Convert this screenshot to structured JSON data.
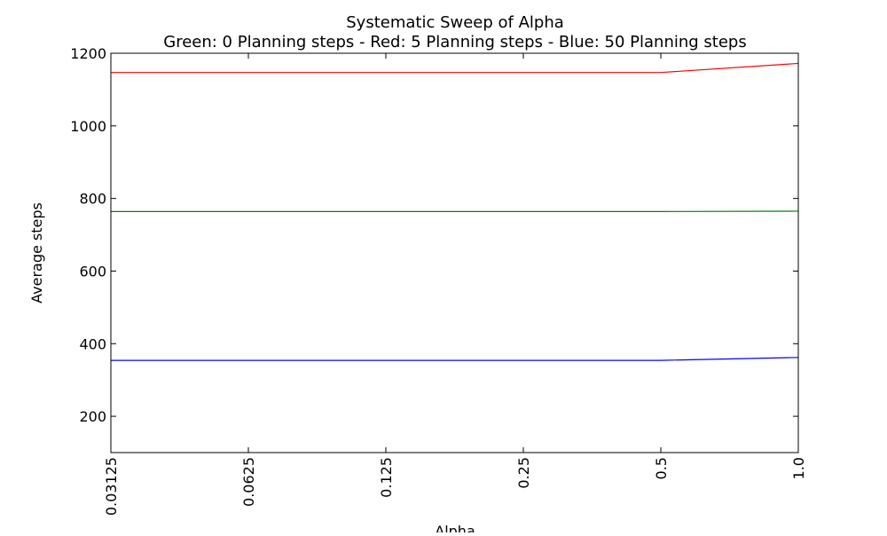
{
  "chart_data": {
    "type": "line",
    "title": "Systematic Sweep of Alpha",
    "subtitle": "Green: 0 Planning steps - Red: 5 Planning steps - Blue: 50 Planning steps",
    "xlabel": "Alpha",
    "ylabel": "Average steps",
    "x_scale": "log2",
    "x": [
      0.03125,
      0.0625,
      0.125,
      0.25,
      0.5,
      1.0
    ],
    "x_tick_labels": [
      "0.03125",
      "0.0625",
      "0.125",
      "0.25",
      "0.5",
      "1.0"
    ],
    "xlim": [
      0.03125,
      1.0
    ],
    "ylim": [
      100,
      1200
    ],
    "y_ticks": [
      200,
      400,
      600,
      800,
      1000,
      1200
    ],
    "y_tick_labels": [
      "200",
      "400",
      "600",
      "800",
      "1000",
      "1200"
    ],
    "grid": false,
    "series": [
      {
        "color": "#ff0000",
        "values": [
          1147,
          1147,
          1147,
          1147,
          1147,
          1172
        ]
      },
      {
        "color": "#008000",
        "values": [
          764,
          764,
          764,
          764,
          764,
          765
        ]
      },
      {
        "color": "#0000ff",
        "values": [
          354,
          354,
          354,
          354,
          354,
          362
        ]
      }
    ]
  }
}
